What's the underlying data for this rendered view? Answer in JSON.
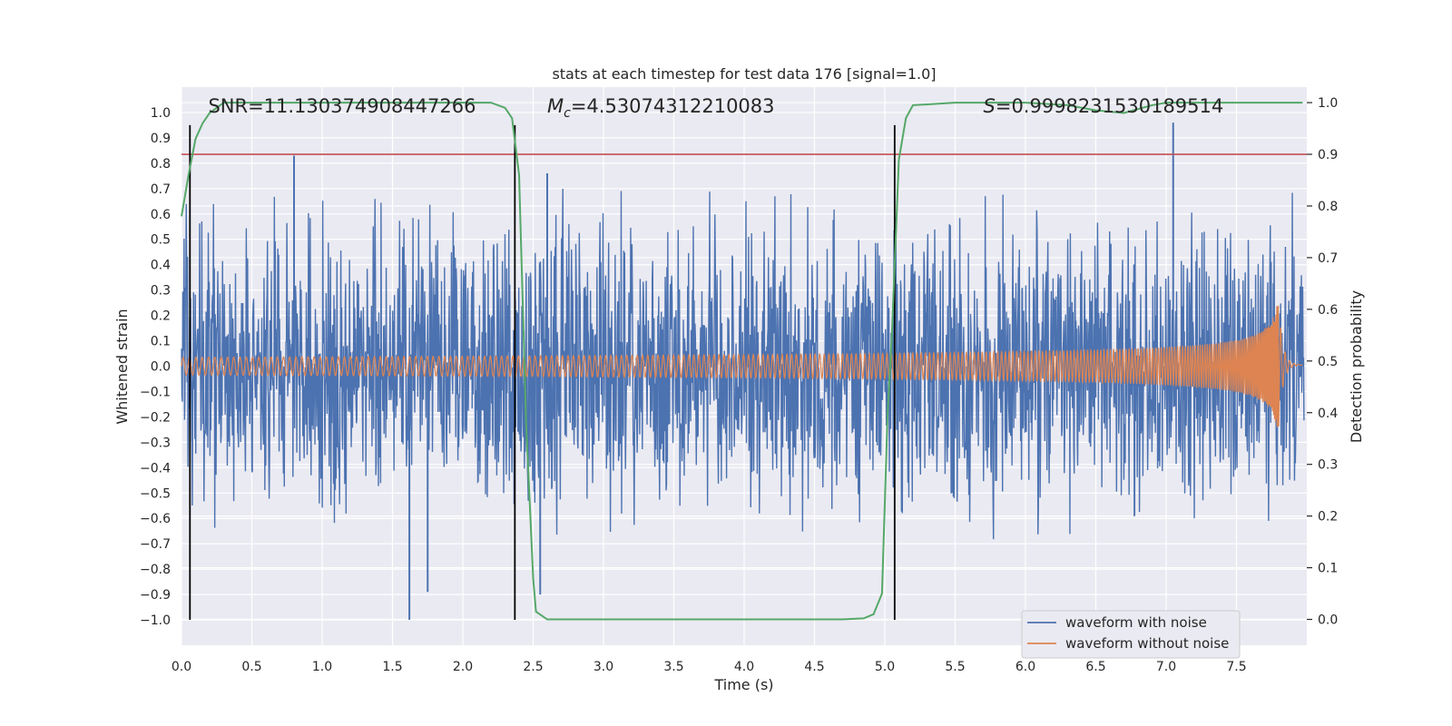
{
  "chart_data": {
    "type": "line",
    "title": "stats at each timestep for test data 176 [signal=1.0]",
    "xlabel": "Time (s)",
    "ylabel": "Whitened strain",
    "y2label": "Detection probability",
    "xlim": [
      0.0,
      8.0
    ],
    "ylim": [
      -1.1,
      1.1
    ],
    "y2lim": [
      -0.05,
      1.03
    ],
    "xticks": [
      0.0,
      0.5,
      1.0,
      1.5,
      2.0,
      2.5,
      3.0,
      3.5,
      4.0,
      4.5,
      5.0,
      5.5,
      6.0,
      6.5,
      7.0,
      7.5
    ],
    "xtick_labels": [
      "0.0",
      "0.5",
      "1.0",
      "1.5",
      "2.0",
      "2.5",
      "3.0",
      "3.5",
      "4.0",
      "4.5",
      "5.0",
      "5.5",
      "6.0",
      "6.5",
      "7.0",
      "7.5"
    ],
    "yticks": [
      1.0,
      0.9,
      0.8,
      0.7,
      0.6,
      0.5,
      0.4,
      0.3,
      0.2,
      0.1,
      0.0,
      -0.1,
      -0.2,
      -0.3,
      -0.4,
      -0.5,
      -0.6,
      -0.7,
      -0.8,
      -0.9,
      -1.0
    ],
    "ytick_labels": [
      "1.0",
      "0.9",
      "0.8",
      "0.7",
      "0.6",
      "0.5",
      "0.4",
      "0.3",
      "0.2",
      "0.1",
      "0.0",
      "−0.1",
      "−0.2",
      "−0.3",
      "−0.4",
      "−0.5",
      "−0.6",
      "−0.7",
      "−0.8",
      "−0.9",
      "−1.0"
    ],
    "y2ticks": [
      1.0,
      0.9,
      0.8,
      0.7,
      0.6,
      0.5,
      0.4,
      0.3,
      0.2,
      0.1,
      0.0
    ],
    "y2tick_labels": [
      "1.0",
      "0.9",
      "0.8",
      "0.7",
      "0.6",
      "0.5",
      "0.4",
      "0.3",
      "0.2",
      "0.1",
      "0.0"
    ],
    "grid": true,
    "series": [
      {
        "name": "waveform with noise",
        "color": "#4c72b0",
        "axis": "left",
        "description": "dense noisy strain, typical envelope about ±0.5",
        "envelope": 0.5,
        "peaks": [
          [
            0.8,
            0.83
          ],
          [
            1.62,
            -1.0
          ],
          [
            1.75,
            -0.89
          ],
          [
            2.6,
            0.76
          ],
          [
            2.55,
            -0.9
          ],
          [
            7.05,
            0.96
          ]
        ]
      },
      {
        "name": "waveform without noise",
        "color": "#dd8452",
        "axis": "left",
        "description": "chirp; amplitude grows from 0.02 to ~0.25 near merger at 7.8 s",
        "x_start": 0.0,
        "x_merge": 7.8,
        "x_end": 7.97,
        "amp_start": 0.02,
        "amp_merge": 0.24
      },
      {
        "name": "detection probability",
        "color": "#55a868",
        "axis": "right",
        "x": [
          0.0,
          0.05,
          0.1,
          0.15,
          0.2,
          0.25,
          0.3,
          0.5,
          1.0,
          1.5,
          2.0,
          2.2,
          2.3,
          2.35,
          2.4,
          2.45,
          2.5,
          2.52,
          2.6,
          3.0,
          4.0,
          4.7,
          4.85,
          4.92,
          4.98,
          5.02,
          5.05,
          5.1,
          5.15,
          5.2,
          5.5,
          6.0,
          6.3,
          6.5,
          6.7,
          6.9,
          7.0,
          7.5,
          7.97
        ],
        "y": [
          0.78,
          0.86,
          0.93,
          0.96,
          0.98,
          0.99,
          1.0,
          1.0,
          1.0,
          1.0,
          1.0,
          1.0,
          0.99,
          0.97,
          0.86,
          0.38,
          0.08,
          0.015,
          0.0,
          0.0,
          0.0,
          0.0,
          0.002,
          0.01,
          0.05,
          0.4,
          0.55,
          0.89,
          0.97,
          0.995,
          1.0,
          1.0,
          0.995,
          0.985,
          0.98,
          0.995,
          1.0,
          1.0,
          1.0
        ]
      }
    ],
    "threshold": {
      "axis": "right",
      "value": 0.9,
      "color": "#c44e52"
    },
    "vlines": {
      "x": [
        0.06,
        2.37,
        5.07
      ],
      "color": "#000000",
      "ymin": -1.0,
      "ymax": 0.95
    },
    "annotations": [
      {
        "text": "SNR=11.130374908447266",
        "x": 0.19
      },
      {
        "mc_symbol": "M",
        "mc_sub": "c",
        "mc_value": "=4.53074312210083",
        "x": 2.6
      },
      {
        "s_symbol": "S",
        "s_value": "=0.9998231530189514",
        "x": 5.7
      }
    ],
    "legend": {
      "placement": "lower-right",
      "entries": [
        "waveform with noise",
        "waveform without noise"
      ]
    }
  }
}
